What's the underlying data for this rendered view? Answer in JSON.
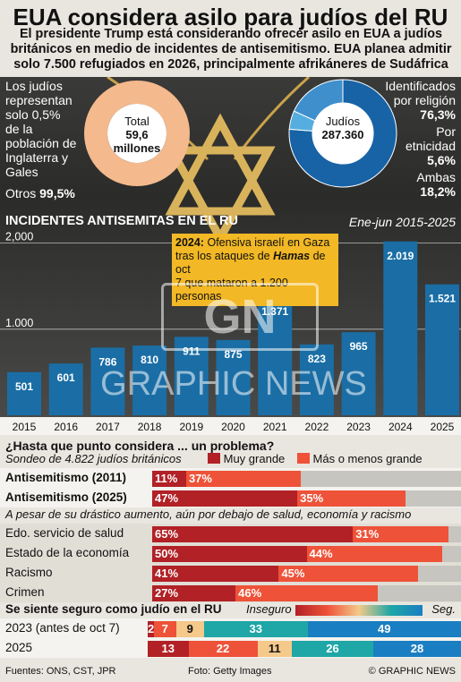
{
  "title": "EUA considera asilo para judíos del RU",
  "subtitle": "El presidente Trump está considerando ofrecer asilo en EUA a judíos británicos en medio de incidentes de antisemitismo. EUA planea admitir solo 7.500 refugiados en 2026, principalmente afrikáneres de Sudáfrica",
  "left_donut": {
    "note": "Los judíos representan solo 0,5% de la población de Inglaterra y Gales",
    "center_label": "Total",
    "center_value": "59,6",
    "center_unit": "millones",
    "others_label": "Otros",
    "others_value": "99,5%",
    "jewish_share": 0.5
  },
  "right_donut": {
    "center_label": "Judíos",
    "center_value": "287.360",
    "labels": [
      {
        "name": "Identificados por religión",
        "value": "76,3%"
      },
      {
        "name": "Por etnicidad",
        "value": "5,6%"
      },
      {
        "name": "Ambas",
        "value": "18,2%"
      }
    ],
    "shares": [
      76.3,
      5.6,
      18.2
    ]
  },
  "colors": {
    "bar": "#1a6ea5",
    "donut_left": "#f4b98c",
    "donut_right_main": "#1763a6",
    "donut_right_light": "#56aee0",
    "dark_red": "#b12126",
    "light_red": "#ee5238",
    "grey": "#c6c5bf",
    "yellow_note": "#f2b825"
  },
  "chart_data": [
    {
      "type": "bar",
      "title": "INCIDENTES ANTISEMITAS EN EL RU",
      "subtitle": "Ene-jun 2015-2025",
      "categories": [
        "2015",
        "2016",
        "2017",
        "2018",
        "2019",
        "2020",
        "2021",
        "2022",
        "2023",
        "2024",
        "2025"
      ],
      "values": [
        501,
        601,
        786,
        810,
        911,
        875,
        1371,
        823,
        965,
        2019,
        1521
      ],
      "value_labels": [
        "501",
        "601",
        "786",
        "810",
        "911",
        "875",
        "1.371",
        "823",
        "965",
        "2.019",
        "1.521"
      ],
      "yticks": [
        "1.000",
        "2,000"
      ],
      "ylim": [
        0,
        2100
      ],
      "annotation": {
        "year_label": "2024:",
        "text_1": "Ofensiva israelí en Gaza",
        "text_2": "tras los ataques de ",
        "text_hamas": "Hamas",
        "text_3": " de oct",
        "text_4": "7 que mataron a 1.200 personas"
      }
    },
    {
      "type": "bar",
      "title": "¿Hasta que punto considera ... un problema?",
      "subtitle": "Sondeo de 4.822 judíos británicos",
      "legend": [
        "Muy grande",
        "Más o menos grande"
      ],
      "rows": [
        {
          "label": "Antisemitismo (2011)",
          "values": [
            11,
            37
          ],
          "labels": [
            "11%",
            "37%"
          ]
        },
        {
          "label": "Antisemitismo (2025)",
          "values": [
            47,
            35
          ],
          "labels": [
            "47%",
            "35%"
          ]
        },
        {
          "label": "Edo. servicio de salud",
          "values": [
            65,
            31
          ],
          "labels": [
            "65%",
            "31%"
          ]
        },
        {
          "label": "Estado de la economía",
          "values": [
            50,
            44
          ],
          "labels": [
            "50%",
            "44%"
          ]
        },
        {
          "label": "Racismo",
          "values": [
            41,
            45
          ],
          "labels": [
            "41%",
            "45%"
          ]
        },
        {
          "label": "Crimen",
          "values": [
            27,
            46
          ],
          "labels": [
            "27%",
            "46%"
          ]
        }
      ],
      "note": "A pesar de su drástico aumento, aún por debajo de salud, economía y racismo"
    },
    {
      "type": "bar",
      "title": "Se siente seguro como judío en el RU",
      "scale_left": "Inseguro",
      "scale_right": "Seg.",
      "rows": [
        {
          "label": "2023 (antes de oct 7)",
          "values": [
            2,
            7,
            9,
            33,
            49
          ],
          "labels": [
            "2",
            "7",
            "9",
            "33",
            "49"
          ]
        },
        {
          "label": "2025",
          "values": [
            13,
            22,
            11,
            26,
            28
          ],
          "labels": [
            "13",
            "22",
            "11",
            "26",
            "28"
          ]
        }
      ],
      "colors": [
        "#b12126",
        "#ee5238",
        "#f4c98a",
        "#1fa6a6",
        "#1a7fc2"
      ]
    }
  ],
  "footer": {
    "sources": "Fuentes: ONS, CST, JPR",
    "photo": "Foto: Getty Images",
    "credit": "© GRAPHIC NEWS"
  },
  "watermark": "GRAPHIC NEWS"
}
